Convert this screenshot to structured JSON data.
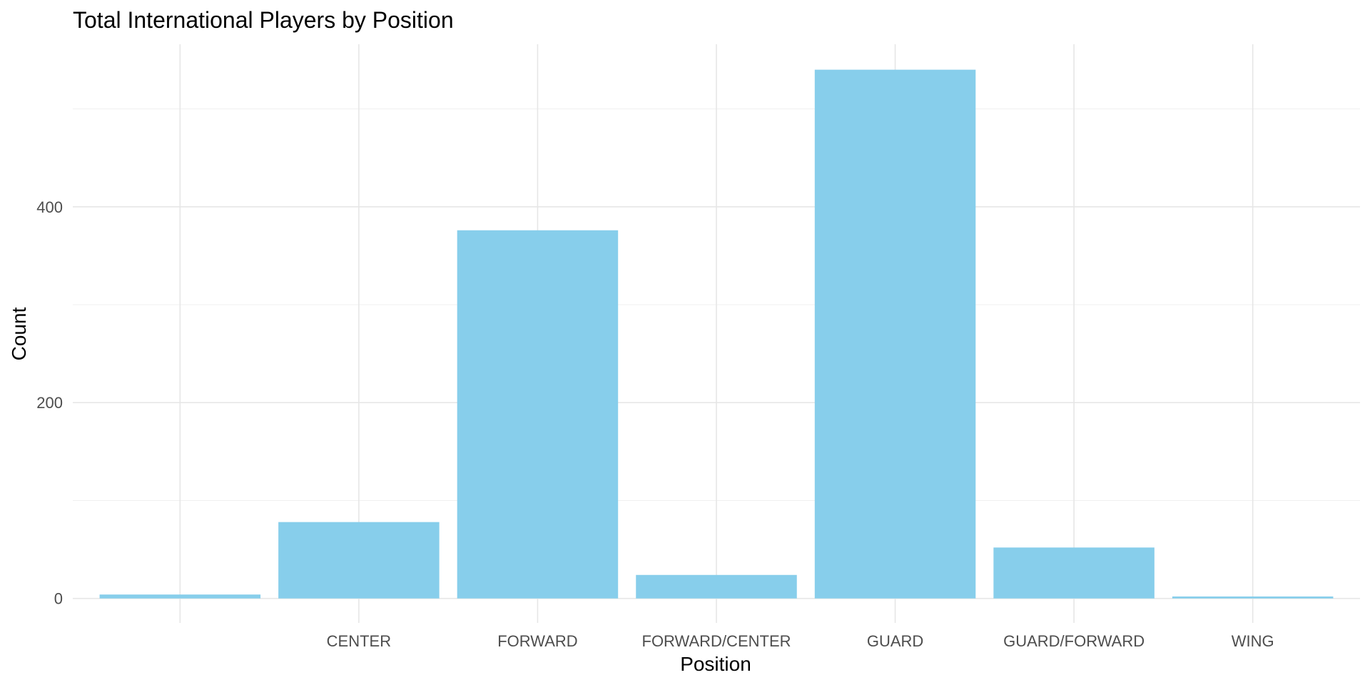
{
  "chart_data": {
    "type": "bar",
    "title": "Total International Players by Position",
    "xlabel": "Position",
    "ylabel": "Count",
    "categories": [
      "",
      "CENTER",
      "FORWARD",
      "FORWARD/CENTER",
      "GUARD",
      "GUARD/FORWARD",
      "WING"
    ],
    "values": [
      4,
      78,
      376,
      24,
      540,
      52,
      2
    ],
    "ylim": [
      -25,
      566
    ],
    "yticks": [
      0,
      200,
      400
    ],
    "grid": true,
    "legend": "none",
    "bar_color": "#87CEEB",
    "gridline_color": "#E6E6E6"
  }
}
